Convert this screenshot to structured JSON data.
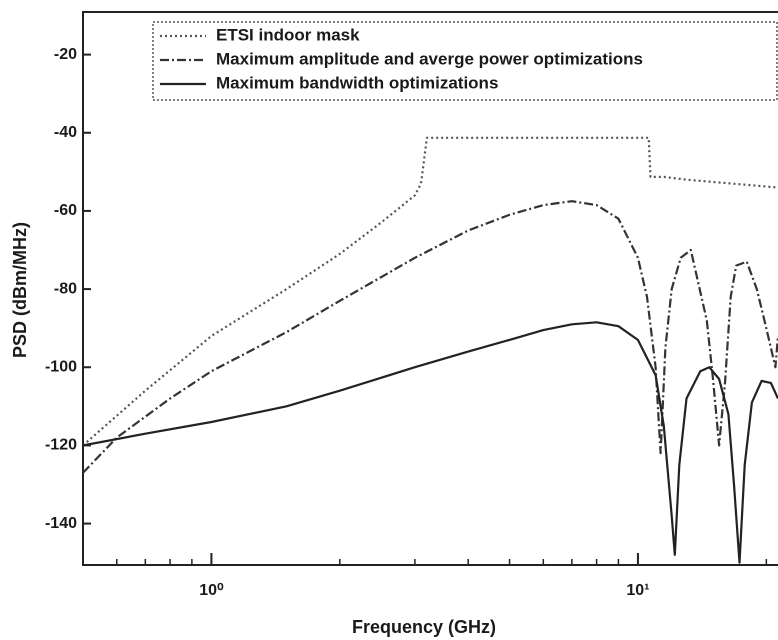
{
  "chart_data": {
    "type": "line",
    "x_label": "Frequency (GHz)",
    "y_label": "PSD (dBm/MHz)",
    "x_scale": "log",
    "xlim": [
      0.5,
      21.3
    ],
    "ylim": [
      -150.6,
      -9.1
    ],
    "xticks": [
      {
        "value": 1,
        "label": "10⁰"
      },
      {
        "value": 10,
        "label": "10¹"
      }
    ],
    "yticks": [
      -140,
      -120,
      -100,
      -80,
      -60,
      -40,
      -20
    ],
    "legend": "top",
    "series": [
      {
        "name": "ETSI indoor mask",
        "color": "#555555",
        "style": "dotted",
        "x": [
          0.5,
          0.7,
          1,
          1.5,
          2,
          2.5,
          3,
          3.1,
          3.2,
          10.6,
          10.7,
          11.5,
          13,
          21.3
        ],
        "values": [
          -120,
          -106,
          -92,
          -80,
          -71,
          -63,
          -56,
          -53,
          -41.3,
          -41.3,
          -51.3,
          -51.3,
          -52,
          -54
        ]
      },
      {
        "name": "Maximum amplitude and averge power optimizations",
        "color": "#333333",
        "style": "dashdot",
        "x": [
          0.5,
          0.6,
          0.8,
          1,
          1.5,
          2,
          3,
          4,
          5,
          6,
          7,
          8,
          9,
          10,
          10.5,
          11,
          11.3,
          11.6,
          12,
          12.6,
          13.3,
          14.5,
          15,
          15.5,
          16,
          16.5,
          17,
          18,
          19,
          20,
          21,
          21.3
        ],
        "values": [
          -127,
          -118,
          -108,
          -101,
          -91,
          -83,
          -72,
          -65,
          -61,
          -58.5,
          -57.5,
          -58.5,
          -62,
          -72,
          -82,
          -100,
          -122,
          -95,
          -80,
          -72,
          -70,
          -88,
          -103,
          -120,
          -104,
          -82,
          -74,
          -73,
          -80,
          -90,
          -100,
          -92
        ]
      },
      {
        "name": "Maximum bandwidth optimizations",
        "color": "#222222",
        "style": "solid",
        "x": [
          0.5,
          0.7,
          1,
          1.5,
          2,
          3,
          4,
          5,
          6,
          7,
          8,
          9,
          10,
          11,
          11.5,
          12,
          12.2,
          12.5,
          13,
          14,
          14.7,
          15.5,
          16.3,
          16.8,
          17.3,
          17.8,
          18.5,
          19.5,
          20.5,
          21.3
        ],
        "values": [
          -120,
          -117,
          -114,
          -110,
          -106,
          -100,
          -96,
          -93,
          -90.5,
          -89,
          -88.5,
          -89.5,
          -93,
          -102,
          -115,
          -138,
          -148,
          -125,
          -108,
          -101,
          -100,
          -103,
          -112,
          -130,
          -150,
          -125,
          -109,
          -103.5,
          -104,
          -108
        ]
      }
    ]
  }
}
